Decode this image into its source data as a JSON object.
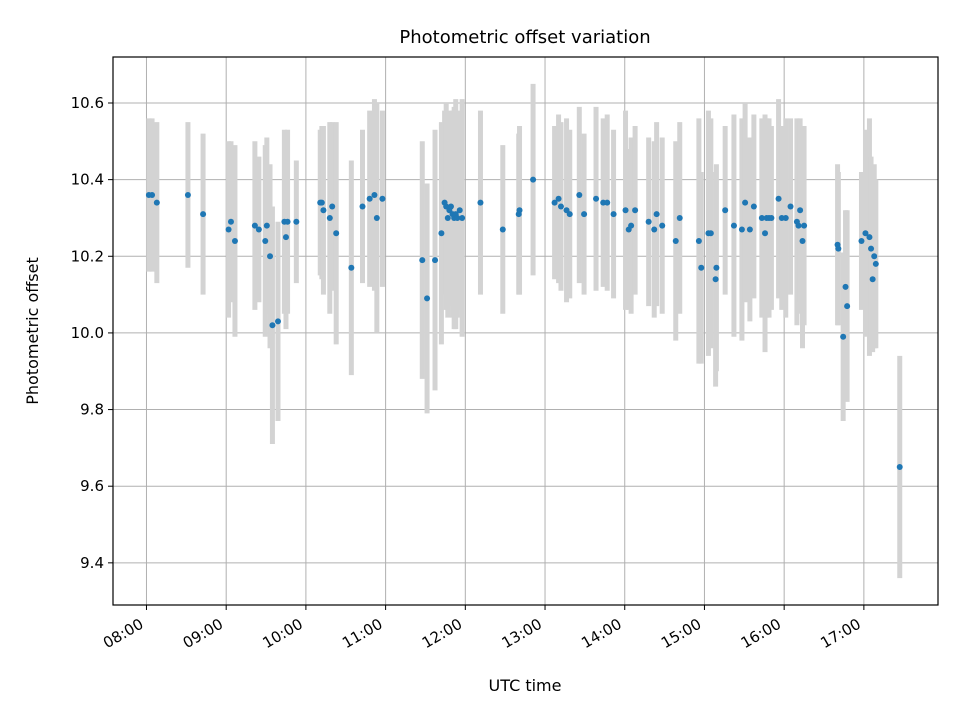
{
  "chart_data": {
    "type": "scatter",
    "title": "Photometric offset variation",
    "xlabel": "UTC time",
    "ylabel": "Photometric offset",
    "grid": true,
    "legend": "none",
    "x_unit": "hours (UTC)",
    "xlim": [
      7.58,
      17.93
    ],
    "ylim": [
      9.29,
      10.72
    ],
    "x_ticks": [
      {
        "value": 8,
        "label": "08:00"
      },
      {
        "value": 9,
        "label": "09:00"
      },
      {
        "value": 10,
        "label": "10:00"
      },
      {
        "value": 11,
        "label": "11:00"
      },
      {
        "value": 12,
        "label": "12:00"
      },
      {
        "value": 13,
        "label": "13:00"
      },
      {
        "value": 14,
        "label": "14:00"
      },
      {
        "value": 15,
        "label": "15:00"
      },
      {
        "value": 16,
        "label": "16:00"
      },
      {
        "value": 17,
        "label": "17:00"
      }
    ],
    "y_ticks": [
      {
        "value": 9.4,
        "label": "9.4"
      },
      {
        "value": 9.6,
        "label": "9.6"
      },
      {
        "value": 9.8,
        "label": "9.8"
      },
      {
        "value": 10.0,
        "label": "10.0"
      },
      {
        "value": 10.2,
        "label": "10.2"
      },
      {
        "value": 10.4,
        "label": "10.4"
      },
      {
        "value": 10.6,
        "label": "10.6"
      }
    ],
    "colors": {
      "points": "#1f77b4",
      "errorbars": "#d3d3d3",
      "grid": "#b0b0b0"
    },
    "series": [
      {
        "x": [
          8.03,
          8.07,
          8.13,
          8.52,
          8.71,
          9.03,
          9.06,
          9.11,
          9.36,
          9.41,
          9.49,
          9.51,
          9.55,
          9.58,
          9.65,
          9.73,
          9.75,
          9.77,
          9.88,
          10.18,
          10.2,
          10.22,
          10.3,
          10.33,
          10.38,
          10.57,
          10.71,
          10.8,
          10.86,
          10.89,
          10.96,
          11.46,
          11.52,
          11.62,
          11.7,
          11.74,
          11.76,
          11.78,
          11.8,
          11.82,
          11.84,
          11.86,
          11.88,
          11.9,
          11.93,
          11.96,
          12.19,
          12.47,
          12.67,
          12.68,
          12.85,
          13.12,
          13.17,
          13.2,
          13.27,
          13.31,
          13.43,
          13.49,
          13.64,
          13.73,
          13.78,
          13.86,
          14.01,
          14.05,
          14.08,
          14.13,
          14.3,
          14.37,
          14.4,
          14.47,
          14.64,
          14.69,
          14.93,
          14.96,
          15.05,
          15.08,
          15.14,
          15.15,
          15.26,
          15.37,
          15.47,
          15.51,
          15.57,
          15.62,
          15.72,
          15.76,
          15.78,
          15.81,
          15.84,
          15.93,
          15.97,
          16.02,
          16.08,
          16.16,
          16.18,
          16.2,
          16.23,
          16.25,
          16.67,
          16.68,
          16.74,
          16.77,
          16.79,
          16.97,
          17.02,
          17.07,
          17.09,
          17.11,
          17.13,
          17.15,
          17.45
        ],
        "y": [
          10.36,
          10.36,
          10.34,
          10.36,
          10.31,
          10.27,
          10.29,
          10.24,
          10.28,
          10.27,
          10.24,
          10.28,
          10.2,
          10.02,
          10.03,
          10.29,
          10.25,
          10.29,
          10.29,
          10.34,
          10.34,
          10.32,
          10.3,
          10.33,
          10.26,
          10.17,
          10.33,
          10.35,
          10.36,
          10.3,
          10.35,
          10.19,
          10.09,
          10.19,
          10.26,
          10.34,
          10.33,
          10.3,
          10.32,
          10.33,
          10.31,
          10.3,
          10.31,
          10.3,
          10.32,
          10.3,
          10.34,
          10.27,
          10.31,
          10.32,
          10.4,
          10.34,
          10.35,
          10.33,
          10.32,
          10.31,
          10.36,
          10.31,
          10.35,
          10.34,
          10.34,
          10.31,
          10.32,
          10.27,
          10.28,
          10.32,
          10.29,
          10.27,
          10.31,
          10.28,
          10.24,
          10.3,
          10.24,
          10.17,
          10.26,
          10.26,
          10.14,
          10.17,
          10.32,
          10.28,
          10.27,
          10.34,
          10.27,
          10.33,
          10.3,
          10.26,
          10.3,
          10.3,
          10.3,
          10.35,
          10.3,
          10.3,
          10.33,
          10.29,
          10.28,
          10.32,
          10.24,
          10.28,
          10.23,
          10.22,
          9.99,
          10.12,
          10.07,
          10.24,
          10.26,
          10.25,
          10.22,
          10.14,
          10.2,
          10.18,
          9.65
        ],
        "err": [
          0.2,
          0.2,
          0.21,
          0.19,
          0.21,
          0.23,
          0.21,
          0.25,
          0.22,
          0.19,
          0.25,
          0.23,
          0.24,
          0.31,
          0.26,
          0.24,
          0.24,
          0.24,
          0.16,
          0.19,
          0.2,
          0.22,
          0.25,
          0.22,
          0.29,
          0.28,
          0.2,
          0.23,
          0.25,
          0.3,
          0.23,
          0.31,
          0.3,
          0.34,
          0.29,
          0.24,
          0.27,
          0.26,
          0.25,
          0.25,
          0.27,
          0.29,
          0.3,
          0.26,
          0.26,
          0.31,
          0.24,
          0.22,
          0.21,
          0.22,
          0.25,
          0.2,
          0.22,
          0.22,
          0.24,
          0.22,
          0.23,
          0.21,
          0.24,
          0.22,
          0.23,
          0.22,
          0.26,
          0.21,
          0.23,
          0.22,
          0.22,
          0.23,
          0.24,
          0.23,
          0.26,
          0.25,
          0.32,
          0.25,
          0.32,
          0.3,
          0.28,
          0.27,
          0.22,
          0.29,
          0.29,
          0.26,
          0.24,
          0.24,
          0.26,
          0.31,
          0.26,
          0.26,
          0.24,
          0.26,
          0.24,
          0.26,
          0.23,
          0.27,
          0.23,
          0.24,
          0.28,
          0.26,
          0.21,
          0.2,
          0.22,
          0.2,
          0.25,
          0.18,
          0.27,
          0.31,
          0.24,
          0.19,
          0.24,
          0.22,
          0.29
        ]
      }
    ]
  }
}
